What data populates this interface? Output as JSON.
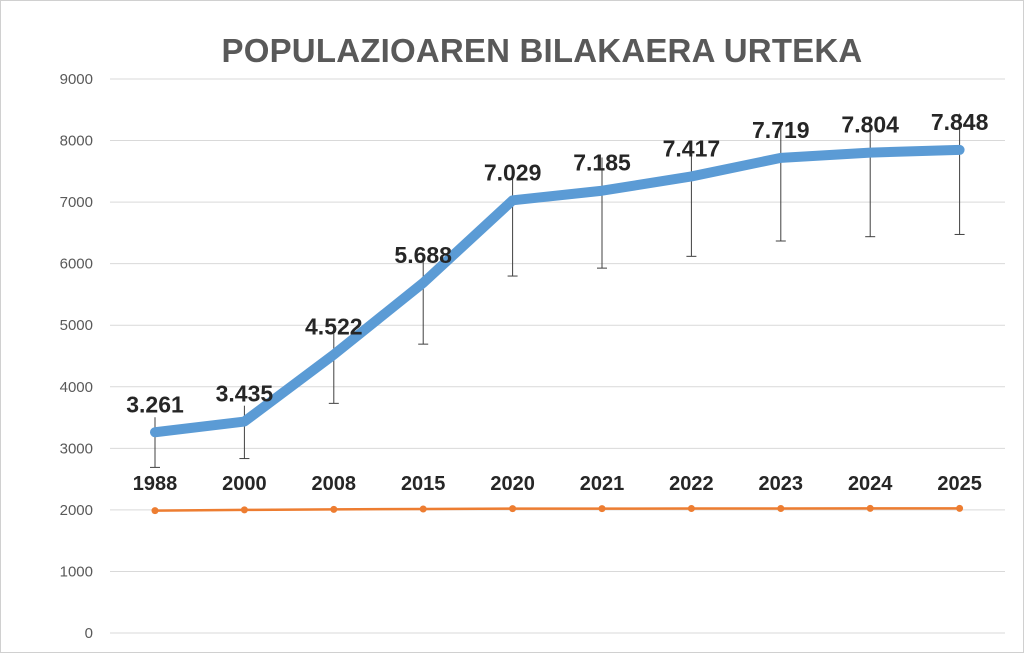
{
  "chart_data": {
    "type": "line",
    "title": "POPULAZIOAREN BILAKAERA URTEKA",
    "categories": [
      "1988",
      "2000",
      "2008",
      "2015",
      "2020",
      "2021",
      "2022",
      "2023",
      "2024",
      "2025"
    ],
    "series": [
      {
        "values": [
          3261,
          3435,
          4522,
          5688,
          7029,
          7185,
          7417,
          7719,
          7804,
          7848
        ],
        "data_labels": [
          "3.261",
          "3.435",
          "4.522",
          "5.688",
          "7.029",
          "7.185",
          "7.417",
          "7.719",
          "7.804",
          "7.848"
        ],
        "color": "#5B9BD5",
        "error_bars": true
      },
      {
        "values": [
          1988,
          2000,
          2008,
          2015,
          2020,
          2021,
          2022,
          2023,
          2024,
          2025
        ],
        "color": "#ED7D31",
        "markers": true
      }
    ],
    "y_ticks": [
      "0",
      "1000",
      "2000",
      "3000",
      "4000",
      "5000",
      "6000",
      "7000",
      "8000",
      "9000"
    ],
    "ylim": [
      0,
      9000
    ],
    "grid": true,
    "legend": "none",
    "category_labels_position": "inside-plot"
  }
}
